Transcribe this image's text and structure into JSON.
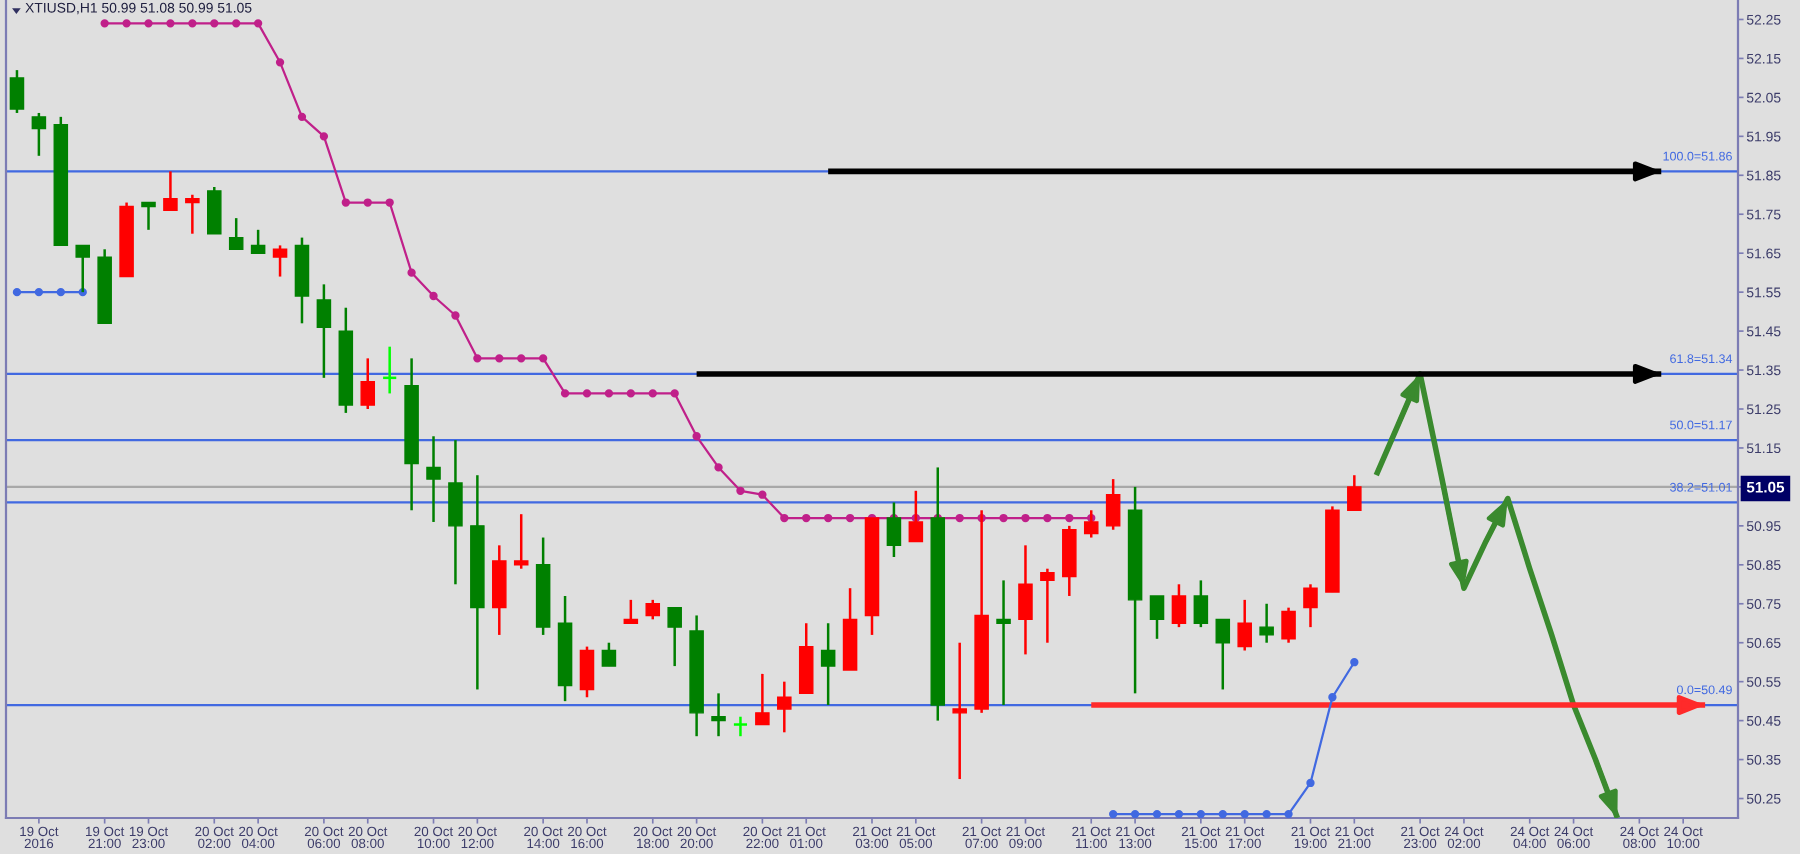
{
  "chart_data": {
    "type": "candlestick",
    "title": "XTIUSD,H1 50.99 51.08 50.99 51.05",
    "categories": [
      null,
      "19 Oct 2016",
      null,
      null,
      "19 Oct 21:00",
      null,
      "19 Oct 23:00",
      null,
      null,
      "20 Oct 02:00",
      null,
      "20 Oct 04:00",
      null,
      null,
      "20 Oct 06:00",
      null,
      "20 Oct 08:00",
      null,
      null,
      "20 Oct 10:00",
      null,
      "20 Oct 12:00",
      null,
      null,
      "20 Oct 14:00",
      null,
      "20 Oct 16:00",
      null,
      null,
      "20 Oct 18:00",
      null,
      "20 Oct 20:00",
      null,
      null,
      "20 Oct 22:00",
      null,
      "21 Oct 01:00",
      null,
      null,
      "21 Oct 03:00",
      null,
      "21 Oct 05:00",
      null,
      null,
      "21 Oct 07:00",
      null,
      "21 Oct 09:00",
      null,
      null,
      "21 Oct 11:00",
      null,
      "21 Oct 13:00",
      null,
      null,
      "21 Oct 15:00",
      null,
      "21 Oct 17:00",
      null,
      null,
      "21 Oct 19:00",
      null,
      "21 Oct 21:00",
      null,
      null,
      "21 Oct 23:00",
      null,
      "24 Oct 02:00",
      null,
      null,
      "24 Oct 04:00",
      null,
      "24 Oct 06:00",
      null,
      null,
      "24 Oct 08:00",
      null,
      "24 Oct 10:00",
      null,
      null
    ],
    "ohlc": [
      [
        52.1,
        52.12,
        52.01,
        52.02
      ],
      [
        52.0,
        52.01,
        51.9,
        51.97
      ],
      [
        51.98,
        52.0,
        51.67,
        51.67
      ],
      [
        51.67,
        51.67,
        51.55,
        51.64
      ],
      [
        51.64,
        51.66,
        51.47,
        51.47
      ],
      [
        51.59,
        51.78,
        51.59,
        51.77
      ],
      [
        51.78,
        51.78,
        51.71,
        51.77
      ],
      [
        51.76,
        51.86,
        51.76,
        51.79
      ],
      [
        51.78,
        51.8,
        51.7,
        51.79
      ],
      [
        51.81,
        51.82,
        51.7,
        51.7
      ],
      [
        51.69,
        51.74,
        51.66,
        51.66
      ],
      [
        51.67,
        51.71,
        51.65,
        51.65
      ],
      [
        51.64,
        51.67,
        51.59,
        51.66
      ],
      [
        51.67,
        51.69,
        51.47,
        51.54
      ],
      [
        51.53,
        51.57,
        51.33,
        51.46
      ],
      [
        51.45,
        51.51,
        51.24,
        51.26
      ],
      [
        51.26,
        51.38,
        51.25,
        51.32
      ],
      [
        51.33,
        51.41,
        51.29,
        51.33
      ],
      [
        51.31,
        51.38,
        50.99,
        51.11
      ],
      [
        51.1,
        51.18,
        50.96,
        51.07
      ],
      [
        51.06,
        51.17,
        50.8,
        50.95
      ],
      [
        50.95,
        51.08,
        50.53,
        50.74
      ],
      [
        50.74,
        50.9,
        50.67,
        50.86
      ],
      [
        50.85,
        50.98,
        50.84,
        50.86
      ],
      [
        50.85,
        50.92,
        50.67,
        50.69
      ],
      [
        50.7,
        50.77,
        50.5,
        50.54
      ],
      [
        50.53,
        50.64,
        50.51,
        50.63
      ],
      [
        50.63,
        50.65,
        50.59,
        50.59
      ],
      [
        50.7,
        50.76,
        50.7,
        50.71
      ],
      [
        50.72,
        50.76,
        50.71,
        50.75
      ],
      [
        50.74,
        50.74,
        50.59,
        50.69
      ],
      [
        50.68,
        50.72,
        50.41,
        50.47
      ],
      [
        50.46,
        50.52,
        50.41,
        50.45
      ],
      [
        50.44,
        50.46,
        50.41,
        50.44
      ],
      [
        50.44,
        50.57,
        50.44,
        50.47
      ],
      [
        50.48,
        50.55,
        50.42,
        50.51
      ],
      [
        50.52,
        50.7,
        50.52,
        50.64
      ],
      [
        50.63,
        50.7,
        50.49,
        50.59
      ],
      [
        50.58,
        50.79,
        50.58,
        50.71
      ],
      [
        50.72,
        50.97,
        50.67,
        50.97
      ],
      [
        50.97,
        51.01,
        50.87,
        50.9
      ],
      [
        50.91,
        51.04,
        50.91,
        50.96
      ],
      [
        50.97,
        51.1,
        50.45,
        50.49
      ],
      [
        50.47,
        50.65,
        50.3,
        50.48
      ],
      [
        50.48,
        50.99,
        50.47,
        50.72
      ],
      [
        50.71,
        50.81,
        50.49,
        50.7
      ],
      [
        50.71,
        50.9,
        50.62,
        50.8
      ],
      [
        50.81,
        50.84,
        50.65,
        50.83
      ],
      [
        50.82,
        50.95,
        50.77,
        50.94
      ],
      [
        50.93,
        50.99,
        50.92,
        50.96
      ],
      [
        50.95,
        51.07,
        50.94,
        51.03
      ],
      [
        50.99,
        51.05,
        50.52,
        50.76
      ],
      [
        50.77,
        50.77,
        50.66,
        50.71
      ],
      [
        50.7,
        50.8,
        50.69,
        50.77
      ],
      [
        50.77,
        50.81,
        50.69,
        50.7
      ],
      [
        50.71,
        50.71,
        50.53,
        50.65
      ],
      [
        50.64,
        50.76,
        50.63,
        50.7
      ],
      [
        50.69,
        50.75,
        50.65,
        50.67
      ],
      [
        50.66,
        50.74,
        50.65,
        50.73
      ],
      [
        50.74,
        50.8,
        50.69,
        50.79
      ],
      [
        50.78,
        51.0,
        50.78,
        50.99
      ],
      [
        50.99,
        51.08,
        50.99,
        51.05
      ],
      null,
      null,
      null,
      null,
      null,
      null,
      null,
      null,
      null,
      null,
      null,
      null,
      null,
      null,
      null,
      null,
      null
    ],
    "colors": [
      "#008000",
      "#008000",
      "#008000",
      "#008000",
      "#008000",
      "#ff0000",
      "#008000",
      "#ff0000",
      "#ff0000",
      "#008000",
      "#008000",
      "#008000",
      "#ff0000",
      "#008000",
      "#008000",
      "#008000",
      "#ff0000",
      "#00ff00",
      "#008000",
      "#008000",
      "#008000",
      "#008000",
      "#ff0000",
      "#ff0000",
      "#008000",
      "#008000",
      "#ff0000",
      "#008000",
      "#ff0000",
      "#ff0000",
      "#008000",
      "#008000",
      "#008000",
      "#00ff00",
      "#ff0000",
      "#ff0000",
      "#ff0000",
      "#008000",
      "#ff0000",
      "#ff0000",
      "#008000",
      "#ff0000",
      "#008000",
      "#ff0000",
      "#ff0000",
      "#008000",
      "#ff0000",
      "#ff0000",
      "#ff0000",
      "#ff0000",
      "#ff0000",
      "#008000",
      "#008000",
      "#ff0000",
      "#008000",
      "#008000",
      "#ff0000",
      "#008000",
      "#ff0000",
      "#ff0000",
      "#ff0000",
      "#ff0000",
      null,
      null,
      null,
      null,
      null,
      null,
      null,
      null,
      null,
      null,
      null,
      null,
      null,
      null,
      null,
      null,
      null
    ],
    "series": [
      {
        "type": "line",
        "color": "#c0208a",
        "marker": "circle",
        "values": [
          null,
          null,
          null,
          null,
          52.24,
          52.24,
          52.24,
          52.24,
          52.24,
          52.24,
          52.24,
          52.24,
          52.14,
          52.0,
          51.95,
          51.78,
          51.78,
          51.78,
          51.6,
          51.54,
          51.49,
          51.38,
          51.38,
          51.38,
          51.38,
          51.29,
          51.29,
          51.29,
          51.29,
          51.29,
          51.29,
          51.18,
          51.1,
          51.04,
          51.03,
          50.97,
          50.97,
          50.97,
          50.97,
          50.97,
          50.97,
          50.97,
          50.97,
          50.97,
          50.97,
          50.97,
          50.97,
          50.97,
          50.97,
          50.97,
          null,
          null,
          null,
          null,
          null,
          null,
          null,
          null,
          null,
          null,
          null,
          null,
          null,
          null,
          null,
          null,
          null,
          null,
          null,
          null,
          null,
          null,
          null,
          null,
          null,
          null,
          null,
          null,
          null
        ]
      },
      {
        "type": "line",
        "color": "#4169e1",
        "marker": "circle",
        "values": [
          51.55,
          51.55,
          51.55,
          51.55,
          null,
          null,
          null,
          null,
          null,
          null,
          null,
          null,
          null,
          null,
          null,
          null,
          null,
          null,
          null,
          null,
          null,
          null,
          null,
          null,
          null,
          null,
          null,
          null,
          null,
          null,
          null,
          null,
          null,
          null,
          null,
          null,
          null,
          null,
          null,
          null,
          null,
          null,
          null,
          null,
          null,
          null,
          null,
          null,
          null,
          null,
          50.21,
          50.21,
          50.21,
          50.21,
          50.21,
          50.21,
          50.21,
          50.21,
          50.21,
          50.29,
          50.51,
          50.6,
          null,
          null,
          null,
          null,
          null,
          null,
          null,
          null,
          null,
          null,
          null,
          null,
          null,
          null,
          null,
          null,
          null
        ]
      },
      {
        "type": "line",
        "color": "#3a8a2e",
        "values": [
          null,
          null,
          null,
          null,
          null,
          null,
          null,
          null,
          null,
          null,
          null,
          null,
          null,
          null,
          null,
          null,
          null,
          null,
          null,
          null,
          null,
          null,
          null,
          null,
          null,
          null,
          null,
          null,
          null,
          null,
          null,
          null,
          null,
          null,
          null,
          null,
          null,
          null,
          null,
          null,
          null,
          null,
          null,
          null,
          null,
          null,
          null,
          null,
          null,
          null,
          null,
          null,
          null,
          null,
          null,
          null,
          null,
          null,
          null,
          null,
          null,
          null,
          51.08,
          51.21,
          51.34,
          51.07,
          50.79,
          50.91,
          51.02,
          50.84,
          50.67,
          50.49,
          50.35,
          50.2,
          null,
          null,
          null,
          null,
          null
        ]
      },
      {
        "type": "line",
        "color": "#000000",
        "values": [
          null,
          null,
          null,
          null,
          null,
          null,
          null,
          null,
          null,
          null,
          null,
          null,
          null,
          null,
          null,
          null,
          null,
          null,
          null,
          null,
          null,
          null,
          null,
          null,
          null,
          null,
          null,
          null,
          null,
          null,
          null,
          null,
          null,
          null,
          null,
          null,
          null,
          51.86,
          51.86,
          51.86,
          51.86,
          51.86,
          51.86,
          51.86,
          51.86,
          51.86,
          51.86,
          51.86,
          51.86,
          51.86,
          51.86,
          51.86,
          51.86,
          51.86,
          51.86,
          51.86,
          51.86,
          51.86,
          51.86,
          51.86,
          51.86,
          51.86,
          51.86,
          51.86,
          51.86,
          51.86,
          51.86,
          51.86,
          51.86,
          51.86,
          51.86,
          51.86,
          51.86,
          51.86,
          51.86,
          51.86,
          null,
          null,
          null
        ]
      },
      {
        "type": "line",
        "color": "#000000",
        "values": [
          null,
          null,
          null,
          null,
          null,
          null,
          null,
          null,
          null,
          null,
          null,
          null,
          null,
          null,
          null,
          null,
          null,
          null,
          null,
          null,
          null,
          null,
          null,
          null,
          null,
          null,
          null,
          null,
          null,
          null,
          null,
          51.34,
          51.34,
          51.34,
          51.34,
          51.34,
          51.34,
          51.34,
          51.34,
          51.34,
          51.34,
          51.34,
          51.34,
          51.34,
          51.34,
          51.34,
          51.34,
          51.34,
          51.34,
          51.34,
          51.34,
          51.34,
          51.34,
          51.34,
          51.34,
          51.34,
          51.34,
          51.34,
          51.34,
          51.34,
          51.34,
          51.34,
          51.34,
          51.34,
          51.34,
          51.34,
          51.34,
          51.34,
          51.34,
          51.34,
          51.34,
          51.34,
          51.34,
          51.34,
          51.34,
          51.34,
          null,
          null,
          null
        ]
      },
      {
        "type": "line",
        "color": "#ff2a2a",
        "values": [
          null,
          null,
          null,
          null,
          null,
          null,
          null,
          null,
          null,
          null,
          null,
          null,
          null,
          null,
          null,
          null,
          null,
          null,
          null,
          null,
          null,
          null,
          null,
          null,
          null,
          null,
          null,
          null,
          null,
          null,
          null,
          null,
          null,
          null,
          null,
          null,
          null,
          null,
          null,
          null,
          null,
          null,
          null,
          null,
          null,
          null,
          null,
          null,
          null,
          50.49,
          50.49,
          50.49,
          50.49,
          50.49,
          50.49,
          50.49,
          50.49,
          50.49,
          50.49,
          50.49,
          50.49,
          50.49,
          50.49,
          50.49,
          50.49,
          50.49,
          50.49,
          50.49,
          50.49,
          50.49,
          50.49,
          50.49,
          50.49,
          50.49,
          50.49,
          50.49,
          50.49,
          50.49,
          null
        ]
      }
    ],
    "ref_lines": [
      {
        "axis": "y",
        "value": 51.86,
        "label": "100.0=51.86",
        "color": "#4169e1"
      },
      {
        "axis": "y",
        "value": 51.34,
        "label": "61.8=51.34",
        "color": "#4169e1"
      },
      {
        "axis": "y",
        "value": 51.17,
        "label": "50.0=51.17",
        "color": "#4169e1"
      },
      {
        "axis": "y",
        "value": 51.01,
        "label": "38.2=51.01",
        "color": "#4169e1"
      },
      {
        "axis": "y",
        "value": 50.49,
        "label": "0.0=50.49",
        "color": "#4169e1"
      },
      {
        "axis": "y",
        "value": 51.05,
        "color": "#a8a8a8"
      }
    ],
    "ylim": [
      50.2,
      52.3
    ],
    "yticks": [
      50.25,
      50.35,
      50.45,
      50.55,
      50.65,
      50.75,
      50.85,
      50.95,
      51.05,
      51.15,
      51.25,
      51.35,
      51.45,
      51.55,
      51.65,
      51.75,
      51.85,
      51.95,
      52.05,
      52.15,
      52.25
    ]
  }
}
